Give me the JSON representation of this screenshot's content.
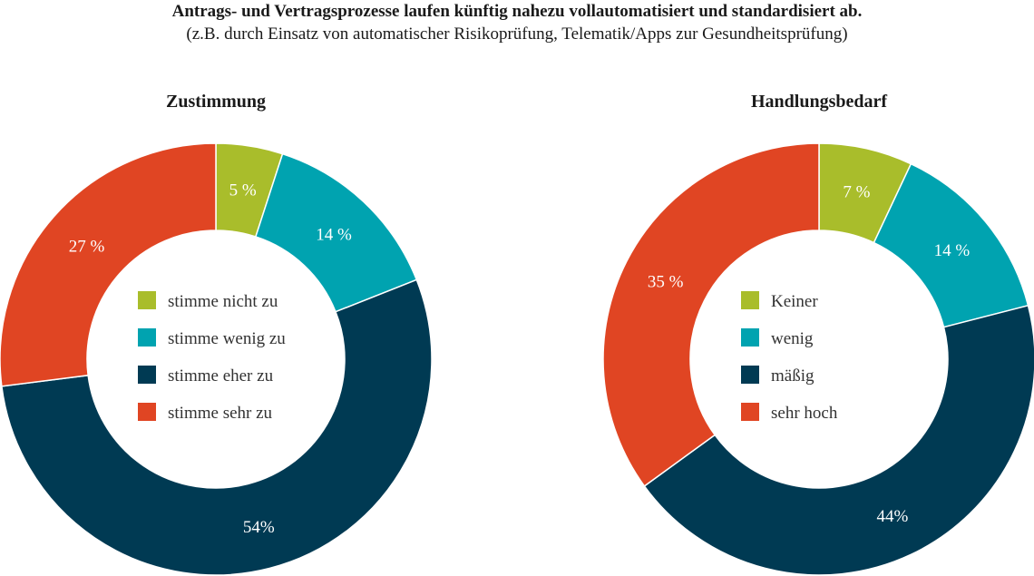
{
  "header": {
    "title": "Antrags- und Vertragsprozesse laufen künftig nahezu vollautomatisiert und standardisiert ab.",
    "subtitle": "(z.B. durch Einsatz von automatischer Risikoprüfung, Telematik/Apps zur Gesundheitsprüfung)"
  },
  "chart_data": [
    {
      "type": "pie",
      "variant": "donut",
      "title": "Zustimmung",
      "categories": [
        "stimme nicht zu",
        "stimme wenig zu",
        "stimme eher zu",
        "stimme sehr zu"
      ],
      "values": [
        5,
        14,
        54,
        27
      ],
      "labels": [
        "5 %",
        "14 %",
        "54%",
        "27 %"
      ],
      "colors": [
        "#a9bd2b",
        "#00a3b0",
        "#003a53",
        "#e04523"
      ],
      "legend": "center"
    },
    {
      "type": "pie",
      "variant": "donut",
      "title": "Handlungsbedarf",
      "categories": [
        "Keiner",
        "wenig",
        "mäßig",
        "sehr hoch"
      ],
      "values": [
        7,
        14,
        44,
        35
      ],
      "labels": [
        "7 %",
        "14 %",
        "44%",
        "35 %"
      ],
      "colors": [
        "#a9bd2b",
        "#00a3b0",
        "#003a53",
        "#e04523"
      ],
      "legend": "center"
    }
  ]
}
